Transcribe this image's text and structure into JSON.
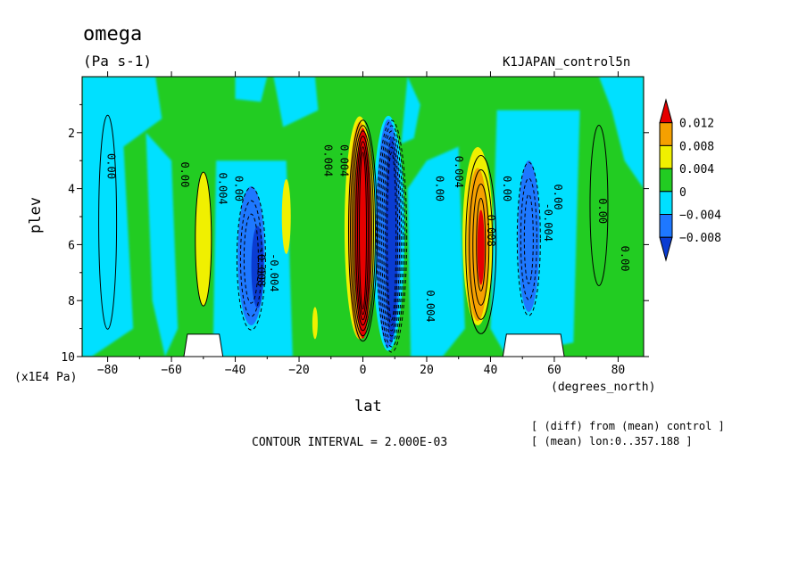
{
  "header": {
    "title": "omega",
    "units": "(Pa s-1)",
    "run_name": "K1JAPAN_control5n"
  },
  "footer": {
    "contour_interval": "CONTOUR INTERVAL = 2.000E-03",
    "note_line1": "[ (diff) from (mean) control ]",
    "note_line2": "[ (mean) lon:0..357.188 ]"
  },
  "chart_data": {
    "type": "heatmap",
    "title": "omega",
    "units": "(Pa s-1)",
    "xlabel": "lat",
    "xunits": "(degrees_north)",
    "ylabel": "plev",
    "yunits": "(x1E4 Pa)",
    "xlim": [
      -88,
      88
    ],
    "ylim": [
      0,
      10
    ],
    "y_inverted": true,
    "x_ticks": [
      -80,
      -60,
      -40,
      -20,
      0,
      20,
      40,
      60,
      80
    ],
    "y_ticks": [
      2,
      4,
      6,
      8,
      10
    ],
    "colorbar": {
      "labels": [
        "0.012",
        "0.008",
        "0.004",
        "0",
        "−0.004",
        "−0.008"
      ],
      "colors": [
        "#e60000",
        "#f5a000",
        "#f0f000",
        "#22cc22",
        "#00e0ff",
        "#1e78ff",
        "#0a3cd2"
      ]
    },
    "features": [
      {
        "lat": 0,
        "plev_top": 1.2,
        "plev_bottom": 10,
        "max": 0.012,
        "sign": "positive"
      },
      {
        "lat": 8,
        "plev_top": 1.2,
        "plev_bottom": 10,
        "min": -0.012,
        "sign": "negative"
      },
      {
        "lat": 36,
        "plev_top": 2.5,
        "plev_bottom": 9.5,
        "max": 0.01,
        "sign": "positive"
      },
      {
        "lat": -35,
        "plev_top": 3.5,
        "plev_bottom": 9.5,
        "min": -0.008,
        "sign": "negative"
      },
      {
        "lat": 52,
        "plev_top": 2.5,
        "plev_bottom": 9.5,
        "min": -0.006,
        "sign": "negative"
      },
      {
        "lat": -50,
        "plev_top": 3,
        "plev_bottom": 9,
        "max": 0.004,
        "sign": "positive"
      }
    ],
    "contour_labels": [
      {
        "text": "0.00",
        "lat": -80,
        "plev": 3.2
      },
      {
        "text": "0.00",
        "lat": -57,
        "plev": 3.5
      },
      {
        "text": "0.004",
        "lat": -45,
        "plev": 4.0
      },
      {
        "text": "0.00",
        "lat": -40,
        "plev": 4.0
      },
      {
        "text": "-0.008",
        "lat": -33,
        "plev": 6.8
      },
      {
        "text": "-0.004",
        "lat": -29,
        "plev": 7.0
      },
      {
        "text": "0.004",
        "lat": -12,
        "plev": 3.0
      },
      {
        "text": "0.004",
        "lat": -7,
        "plev": 3.0
      },
      {
        "text": "0.004",
        "lat": 20,
        "plev": 8.2
      },
      {
        "text": "0.00",
        "lat": 23,
        "plev": 4.0
      },
      {
        "text": "0.004",
        "lat": 29,
        "plev": 3.4
      },
      {
        "text": "0.008",
        "lat": 39,
        "plev": 5.5
      },
      {
        "text": "0.00",
        "lat": 44,
        "plev": 4.0
      },
      {
        "text": "-0.004",
        "lat": 57,
        "plev": 5.2
      },
      {
        "text": "0.00",
        "lat": 60,
        "plev": 4.3
      },
      {
        "text": "0.00",
        "lat": 74,
        "plev": 4.8
      },
      {
        "text": "0.00",
        "lat": 81,
        "plev": 6.5
      }
    ],
    "masked_regions": [
      {
        "lat_from": -55,
        "lat_to": -45,
        "plev_from": 9.2,
        "plev_to": 10
      },
      {
        "lat_from": 45,
        "lat_to": 62,
        "plev_from": 9.2,
        "plev_to": 10
      }
    ]
  }
}
